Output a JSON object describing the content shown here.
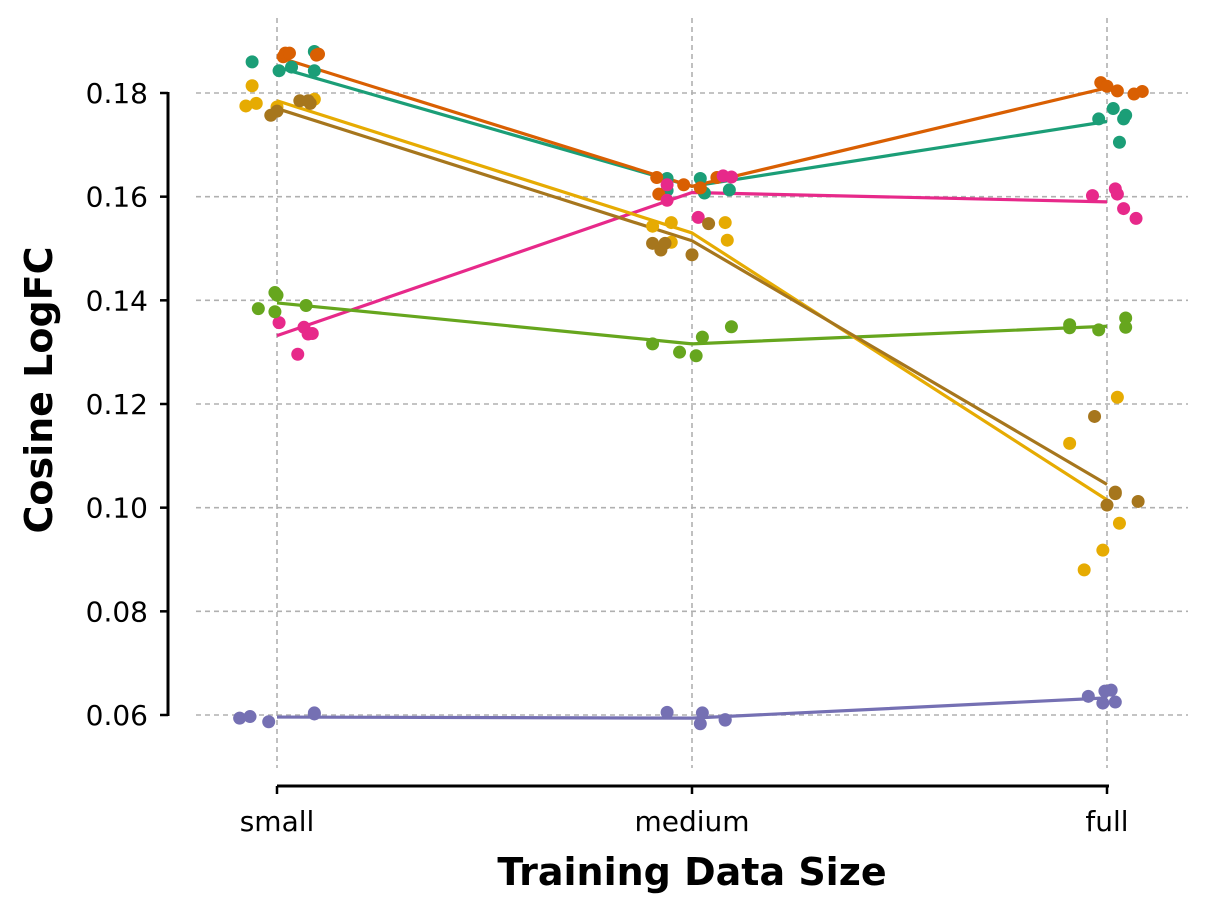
{
  "chart_data": {
    "type": "line",
    "title": "",
    "xlabel": "Training Data Size",
    "ylabel": "Cosine LogFC",
    "categories": [
      "small",
      "medium",
      "full"
    ],
    "ylim": [
      0.05,
      0.19
    ],
    "yticks": [
      0.06,
      0.08,
      0.1,
      0.12,
      0.14,
      0.16,
      0.18
    ],
    "ytick_labels": [
      "0.06",
      "0.08",
      "0.10",
      "0.12",
      "0.14",
      "0.16",
      "0.18"
    ],
    "grid": true,
    "legend": "none",
    "series": [
      {
        "color": "#1b9e77",
        "mean": [
          0.185,
          0.162,
          0.1745
        ],
        "points": [
          [
            [
              -0.06,
              0.186
            ],
            [
              0.005,
              0.1843
            ],
            [
              0.035,
              0.185
            ],
            [
              0.09,
              0.188
            ],
            [
              0.09,
              0.1843
            ]
          ],
          [
            [
              -0.06,
              0.1612
            ],
            [
              -0.06,
              0.1635
            ],
            [
              0.02,
              0.1635
            ],
            [
              0.03,
              0.1607
            ],
            [
              0.09,
              0.1613
            ]
          ],
          [
            [
              -0.02,
              0.175
            ],
            [
              0.015,
              0.177
            ],
            [
              0.03,
              0.1705
            ],
            [
              0.04,
              0.175
            ],
            [
              0.045,
              0.1757
            ]
          ]
        ]
      },
      {
        "color": "#d95f02",
        "mean": [
          0.187,
          0.162,
          0.181
        ],
        "points": [
          [
            [
              0.015,
              0.187
            ],
            [
              0.02,
              0.1877
            ],
            [
              0.03,
              0.1877
            ],
            [
              0.095,
              0.1873
            ],
            [
              0.1,
              0.1875
            ]
          ],
          [
            [
              -0.085,
              0.1637
            ],
            [
              -0.08,
              0.1605
            ],
            [
              -0.02,
              0.1623
            ],
            [
              0.02,
              0.1617
            ],
            [
              0.06,
              0.1637
            ]
          ],
          [
            [
              -0.015,
              0.182
            ],
            [
              0.0,
              0.1813
            ],
            [
              0.025,
              0.1804
            ],
            [
              0.065,
              0.1798
            ],
            [
              0.085,
              0.1803
            ]
          ]
        ]
      },
      {
        "color": "#7570b3",
        "mean": [
          0.0596,
          0.0594,
          0.0633
        ],
        "points": [
          [
            [
              -0.09,
              0.0594
            ],
            [
              -0.065,
              0.0597
            ],
            [
              -0.02,
              0.0587
            ],
            [
              0.09,
              0.0604
            ],
            [
              0.09,
              0.0602
            ]
          ],
          [
            [
              -0.06,
              0.0605
            ],
            [
              0.02,
              0.0583
            ],
            [
              0.025,
              0.0604
            ],
            [
              0.08,
              0.0591
            ],
            [
              0.08,
              0.059
            ]
          ],
          [
            [
              -0.045,
              0.0636
            ],
            [
              -0.01,
              0.0623
            ],
            [
              -0.005,
              0.0646
            ],
            [
              0.01,
              0.0648
            ],
            [
              0.02,
              0.0625
            ]
          ]
        ]
      },
      {
        "color": "#e7298a",
        "mean": [
          0.1332,
          0.1608,
          0.159
        ],
        "points": [
          [
            [
              0.005,
              0.1357
            ],
            [
              0.05,
              0.1296
            ],
            [
              0.065,
              0.1348
            ],
            [
              0.075,
              0.1335
            ],
            [
              0.085,
              0.1336
            ]
          ],
          [
            [
              -0.06,
              0.1623
            ],
            [
              -0.06,
              0.1593
            ],
            [
              0.015,
              0.156
            ],
            [
              0.075,
              0.164
            ],
            [
              0.095,
              0.1638
            ]
          ],
          [
            [
              -0.035,
              0.1602
            ],
            [
              0.02,
              0.1615
            ],
            [
              0.025,
              0.1605
            ],
            [
              0.04,
              0.1577
            ],
            [
              0.07,
              0.1558
            ]
          ]
        ]
      },
      {
        "color": "#66a61e",
        "mean": [
          0.1395,
          0.1316,
          0.135
        ],
        "points": [
          [
            [
              -0.045,
              0.1384
            ],
            [
              -0.005,
              0.1415
            ],
            [
              -0.005,
              0.1378
            ],
            [
              0.0,
              0.141
            ],
            [
              0.07,
              0.139
            ]
          ],
          [
            [
              -0.095,
              0.1316
            ],
            [
              -0.03,
              0.13
            ],
            [
              0.01,
              0.1293
            ],
            [
              0.025,
              0.1329
            ],
            [
              0.095,
              0.1349
            ]
          ],
          [
            [
              -0.09,
              0.1347
            ],
            [
              -0.09,
              0.1353
            ],
            [
              -0.02,
              0.1343
            ],
            [
              0.045,
              0.1366
            ],
            [
              0.045,
              0.1348
            ]
          ]
        ]
      },
      {
        "color": "#e6ab02",
        "mean": [
          0.1785,
          0.153,
          0.1015
        ],
        "points": [
          [
            [
              -0.075,
              0.1775
            ],
            [
              -0.06,
              0.1814
            ],
            [
              -0.05,
              0.178
            ],
            [
              0.0,
              0.1773
            ],
            [
              0.09,
              0.1788
            ]
          ],
          [
            [
              -0.095,
              0.1543
            ],
            [
              -0.05,
              0.1512
            ],
            [
              -0.05,
              0.155
            ],
            [
              0.08,
              0.155
            ],
            [
              0.085,
              0.1516
            ]
          ],
          [
            [
              -0.09,
              0.1124
            ],
            [
              -0.055,
              0.088
            ],
            [
              -0.01,
              0.0918
            ],
            [
              0.025,
              0.1213
            ],
            [
              0.03,
              0.097
            ]
          ]
        ]
      },
      {
        "color": "#a6761d",
        "mean": [
          0.177,
          0.1515,
          0.1045
        ],
        "points": [
          [
            [
              -0.015,
              0.1757
            ],
            [
              0.0,
              0.1765
            ],
            [
              0.055,
              0.1785
            ],
            [
              0.08,
              0.178
            ],
            [
              0.075,
              0.1785
            ]
          ],
          [
            [
              -0.095,
              0.151
            ],
            [
              -0.075,
              0.1497
            ],
            [
              -0.065,
              0.151
            ],
            [
              0.0,
              0.1488
            ],
            [
              0.04,
              0.1548
            ]
          ],
          [
            [
              -0.03,
              0.1176
            ],
            [
              0.0,
              0.1005
            ],
            [
              0.02,
              0.1027
            ],
            [
              0.02,
              0.103
            ],
            [
              0.075,
              0.1012
            ]
          ]
        ]
      }
    ]
  }
}
